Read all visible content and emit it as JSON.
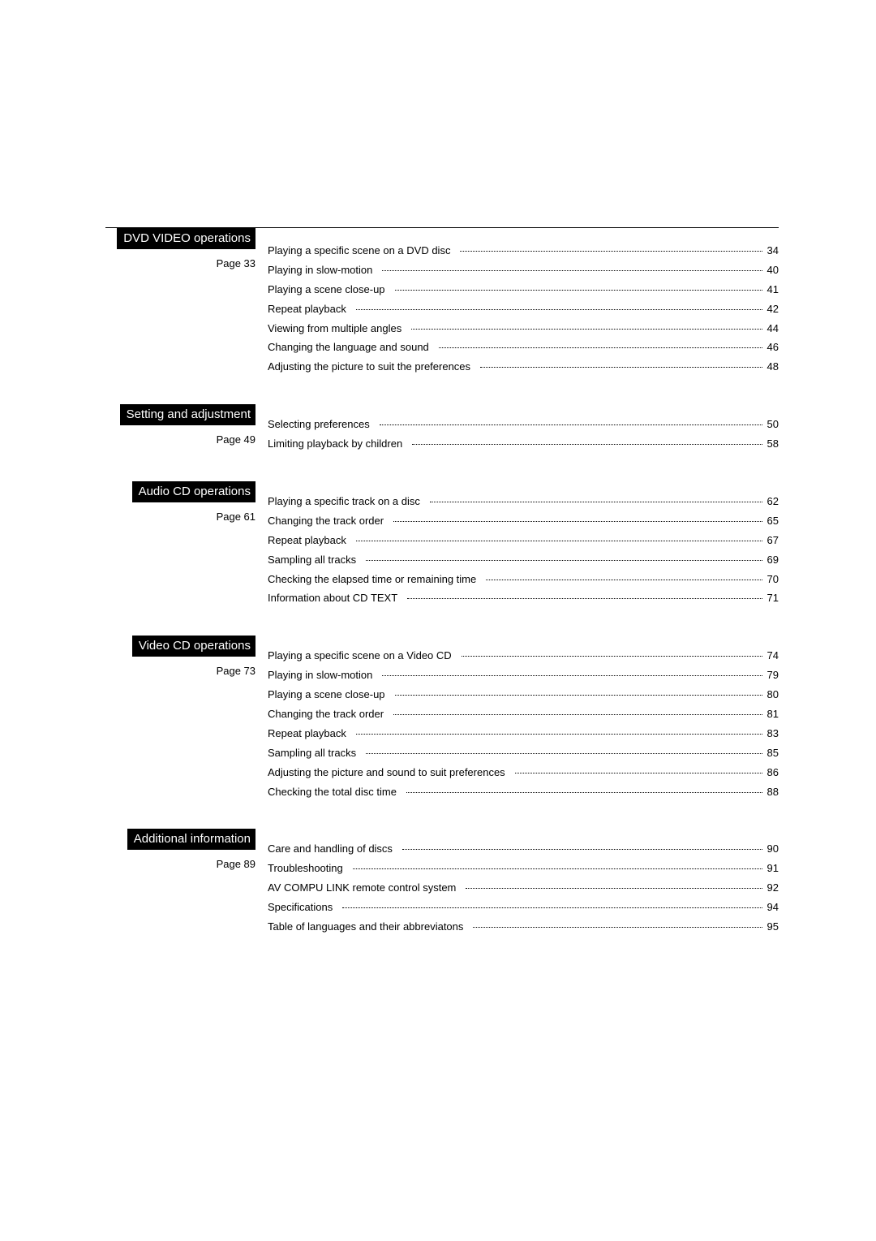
{
  "page": {
    "background_color": "#ffffff",
    "text_color": "#000000",
    "section_title_bg": "#000000",
    "section_title_color": "#ffffff",
    "body_fontsize": 13,
    "title_fontsize": 15
  },
  "sections": [
    {
      "title": "DVD VIDEO operations",
      "page_label": "Page 33",
      "entries": [
        {
          "label": "Playing a specific scene on a DVD disc",
          "page": "34"
        },
        {
          "label": "Playing in slow-motion",
          "page": "40"
        },
        {
          "label": "Playing a scene close-up",
          "page": "41"
        },
        {
          "label": "Repeat playback",
          "page": "42"
        },
        {
          "label": "Viewing from multiple angles",
          "page": "44"
        },
        {
          "label": "Changing the language and sound",
          "page": "46"
        },
        {
          "label": "Adjusting the picture to suit the preferences",
          "page": "48"
        }
      ]
    },
    {
      "title": "Setting and adjustment",
      "page_label": "Page 49",
      "entries": [
        {
          "label": "Selecting preferences",
          "page": "50"
        },
        {
          "label": "Limiting playback by children",
          "page": "58"
        }
      ]
    },
    {
      "title": "Audio CD operations",
      "page_label": "Page 61",
      "entries": [
        {
          "label": "Playing a specific track on a disc",
          "page": "62"
        },
        {
          "label": "Changing the track order",
          "page": "65"
        },
        {
          "label": "Repeat playback",
          "page": "67"
        },
        {
          "label": "Sampling all tracks",
          "page": "69"
        },
        {
          "label": "Checking the elapsed time or remaining time",
          "page": "70"
        },
        {
          "label": "Information about CD TEXT",
          "page": "71"
        }
      ]
    },
    {
      "title": "Video CD operations",
      "page_label": "Page 73",
      "entries": [
        {
          "label": "Playing a specific scene on a Video CD",
          "page": "74"
        },
        {
          "label": "Playing in slow-motion",
          "page": "79"
        },
        {
          "label": "Playing a scene close-up",
          "page": "80"
        },
        {
          "label": "Changing the track order",
          "page": "81"
        },
        {
          "label": "Repeat playback",
          "page": "83"
        },
        {
          "label": "Sampling all tracks",
          "page": "85"
        },
        {
          "label": "Adjusting the picture and sound to suit preferences",
          "page": "86"
        },
        {
          "label": "Checking the total disc time",
          "page": "88"
        }
      ]
    },
    {
      "title": "Additional information",
      "page_label": "Page 89",
      "entries": [
        {
          "label": "Care and handling of discs",
          "page": "90"
        },
        {
          "label": "Troubleshooting",
          "page": "91"
        },
        {
          "label": "AV COMPU LINK remote control system",
          "page": "92"
        },
        {
          "label": "Specifications",
          "page": "94"
        },
        {
          "label": "Table of languages and their abbreviatons",
          "page": "95"
        }
      ]
    }
  ]
}
